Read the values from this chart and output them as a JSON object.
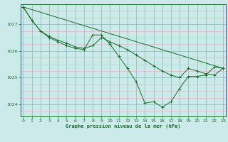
{
  "title": "Graphe pression niveau de la mer (hPa)",
  "bg_color": "#cceaea",
  "line_color": "#1a6b2a",
  "xlim": [
    -0.3,
    23.3
  ],
  "ylim": [
    1023.55,
    1027.75
  ],
  "yticks": [
    1024,
    1025,
    1026,
    1027
  ],
  "xticks": [
    0,
    1,
    2,
    3,
    4,
    5,
    6,
    7,
    8,
    9,
    10,
    11,
    12,
    13,
    14,
    15,
    16,
    17,
    18,
    19,
    20,
    21,
    22,
    23
  ],
  "series": [
    {
      "x": [
        0,
        1,
        2,
        3,
        4,
        5,
        6,
        7,
        8,
        9,
        10,
        11,
        12,
        13,
        14,
        15,
        16,
        17,
        18,
        19,
        20,
        21,
        22,
        23
      ],
      "y": [
        1027.65,
        1027.15,
        1026.75,
        1026.5,
        1026.35,
        1026.2,
        1026.1,
        1026.05,
        1026.6,
        1026.6,
        1026.25,
        1025.8,
        1025.35,
        1024.85,
        1024.05,
        1024.1,
        1023.9,
        1024.1,
        1024.6,
        1025.05,
        1025.05,
        1025.1,
        1025.4,
        1025.35
      ]
    },
    {
      "x": [
        0,
        23
      ],
      "y": [
        1027.65,
        1025.35
      ]
    },
    {
      "x": [
        0,
        1,
        2,
        3,
        4,
        5,
        6,
        7,
        8,
        9,
        10,
        11,
        12,
        13,
        14,
        15,
        16,
        17,
        18,
        19,
        20,
        21,
        22,
        23
      ],
      "y": [
        1027.65,
        1027.15,
        1026.75,
        1026.55,
        1026.4,
        1026.3,
        1026.15,
        1026.1,
        1026.2,
        1026.5,
        1026.35,
        1026.2,
        1026.05,
        1025.85,
        1025.65,
        1025.45,
        1025.25,
        1025.1,
        1025.0,
        1025.35,
        1025.25,
        1025.15,
        1025.1,
        1025.35
      ]
    }
  ]
}
